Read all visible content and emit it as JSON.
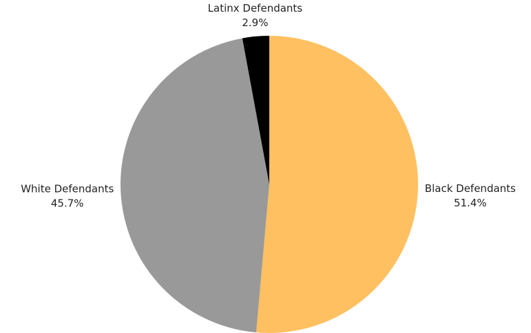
{
  "chart_data": {
    "type": "pie",
    "start": "top",
    "direction": "clockwise",
    "legend": "none",
    "slices": [
      {
        "label": "Black Defendants",
        "value": 51.4,
        "value_label": "51.4%",
        "color": "#FFC061"
      },
      {
        "label": "White Defendants",
        "value": 45.7,
        "value_label": "45.7%",
        "color": "#999999"
      },
      {
        "label": "Latinx Defendants",
        "value": 2.9,
        "value_label": "2.9%",
        "color": "#000000"
      }
    ]
  }
}
